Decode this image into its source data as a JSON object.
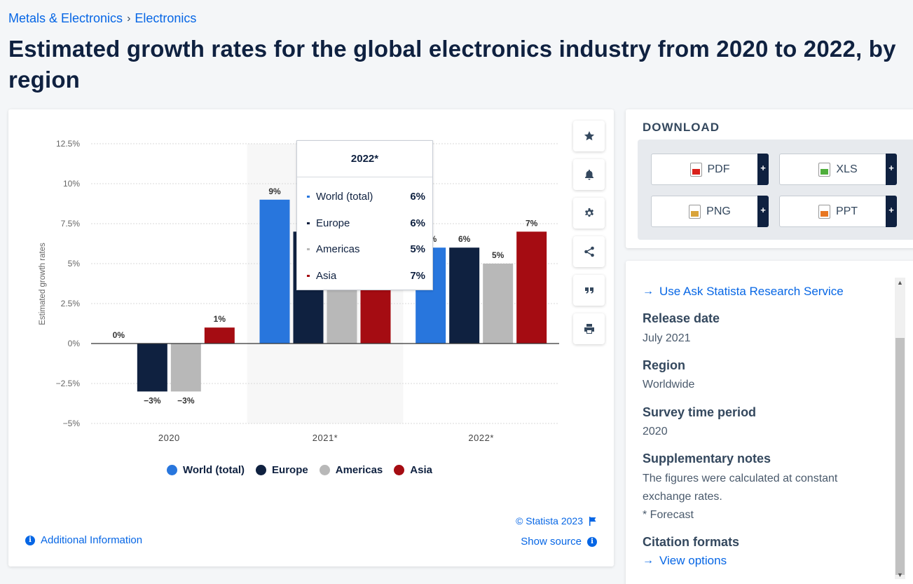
{
  "breadcrumb": {
    "items": [
      "Metals & Electronics",
      "Electronics"
    ],
    "separator": "›"
  },
  "page_title": "Estimated growth rates for the global electronics industry from 2020 to 2022, by region",
  "chart_data": {
    "type": "bar",
    "ylabel": "Estimated growth rates",
    "xlabel": "",
    "categories": [
      "2020",
      "2021*",
      "2022*"
    ],
    "yticks": [
      "12.5%",
      "10%",
      "7.5%",
      "5%",
      "2.5%",
      "0%",
      "−2.5%",
      "−5%"
    ],
    "ylim": [
      -5,
      12.5
    ],
    "grid": true,
    "legend_position": "bottom",
    "series": [
      {
        "name": "World (total)",
        "color": "#2876dd",
        "values": [
          0,
          9,
          6
        ],
        "labels": [
          "0%",
          "9%",
          "6%"
        ]
      },
      {
        "name": "Europe",
        "color": "#0f2140",
        "values": [
          -3,
          7,
          6
        ],
        "labels": [
          "−3%",
          "",
          "6%"
        ]
      },
      {
        "name": "Americas",
        "color": "#b8b8b8",
        "values": [
          -3,
          5.5,
          5
        ],
        "labels": [
          "−3%",
          "",
          "5%"
        ]
      },
      {
        "name": "Asia",
        "color": "#a50c12",
        "values": [
          1,
          5,
          7
        ],
        "labels": [
          "1%",
          "",
          "7%"
        ]
      }
    ],
    "highlighted_category": "2021*"
  },
  "tooltip": {
    "title": "2022*",
    "rows": [
      {
        "label": "World (total)",
        "value": "6%",
        "color": "#2876dd"
      },
      {
        "label": "Europe",
        "value": "6%",
        "color": "#0f2140"
      },
      {
        "label": "Americas",
        "value": "5%",
        "color": "#b8b8b8"
      },
      {
        "label": "Asia",
        "value": "7%",
        "color": "#a50c12"
      }
    ]
  },
  "tools": [
    "star-icon",
    "bell-icon",
    "gear-icon",
    "share-icon",
    "quote-icon",
    "print-icon"
  ],
  "chart_footer": {
    "copyright": "© Statista 2023",
    "additional_info": "Additional Information",
    "show_source": "Show source"
  },
  "download": {
    "title": "DOWNLOAD",
    "buttons": [
      {
        "label": "PDF",
        "icon": "pdf-icon",
        "color": "#d9211b"
      },
      {
        "label": "XLS",
        "icon": "xls-icon",
        "color": "#4fae3b"
      },
      {
        "label": "PNG",
        "icon": "png-icon",
        "color": "#d9a43b"
      },
      {
        "label": "PPT",
        "icon": "ppt-icon",
        "color": "#e87722"
      }
    ],
    "plus": "+"
  },
  "info": {
    "ask_link": "Use Ask Statista Research Service",
    "release_date_label": "Release date",
    "release_date": "July 2021",
    "region_label": "Region",
    "region": "Worldwide",
    "survey_label": "Survey time period",
    "survey": "2020",
    "notes_label": "Supplementary notes",
    "notes": "The figures were calculated at constant exchange rates.",
    "notes2": "* Forecast",
    "citation_label": "Citation formats",
    "citation_link": "View options"
  }
}
